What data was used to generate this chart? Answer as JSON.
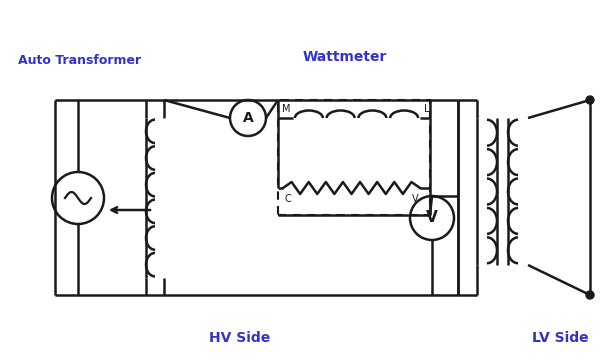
{
  "label_color": "#3333cc",
  "line_color": "#1a1a1a",
  "bg_color": "#ffffff",
  "wattmeter_label": "Wattmeter",
  "auto_transformer_label": "Auto Transformer",
  "hv_side_label": "HV Side",
  "lv_side_label": "LV Side",
  "figsize": [
    6.08,
    3.61
  ],
  "dpi": 100
}
